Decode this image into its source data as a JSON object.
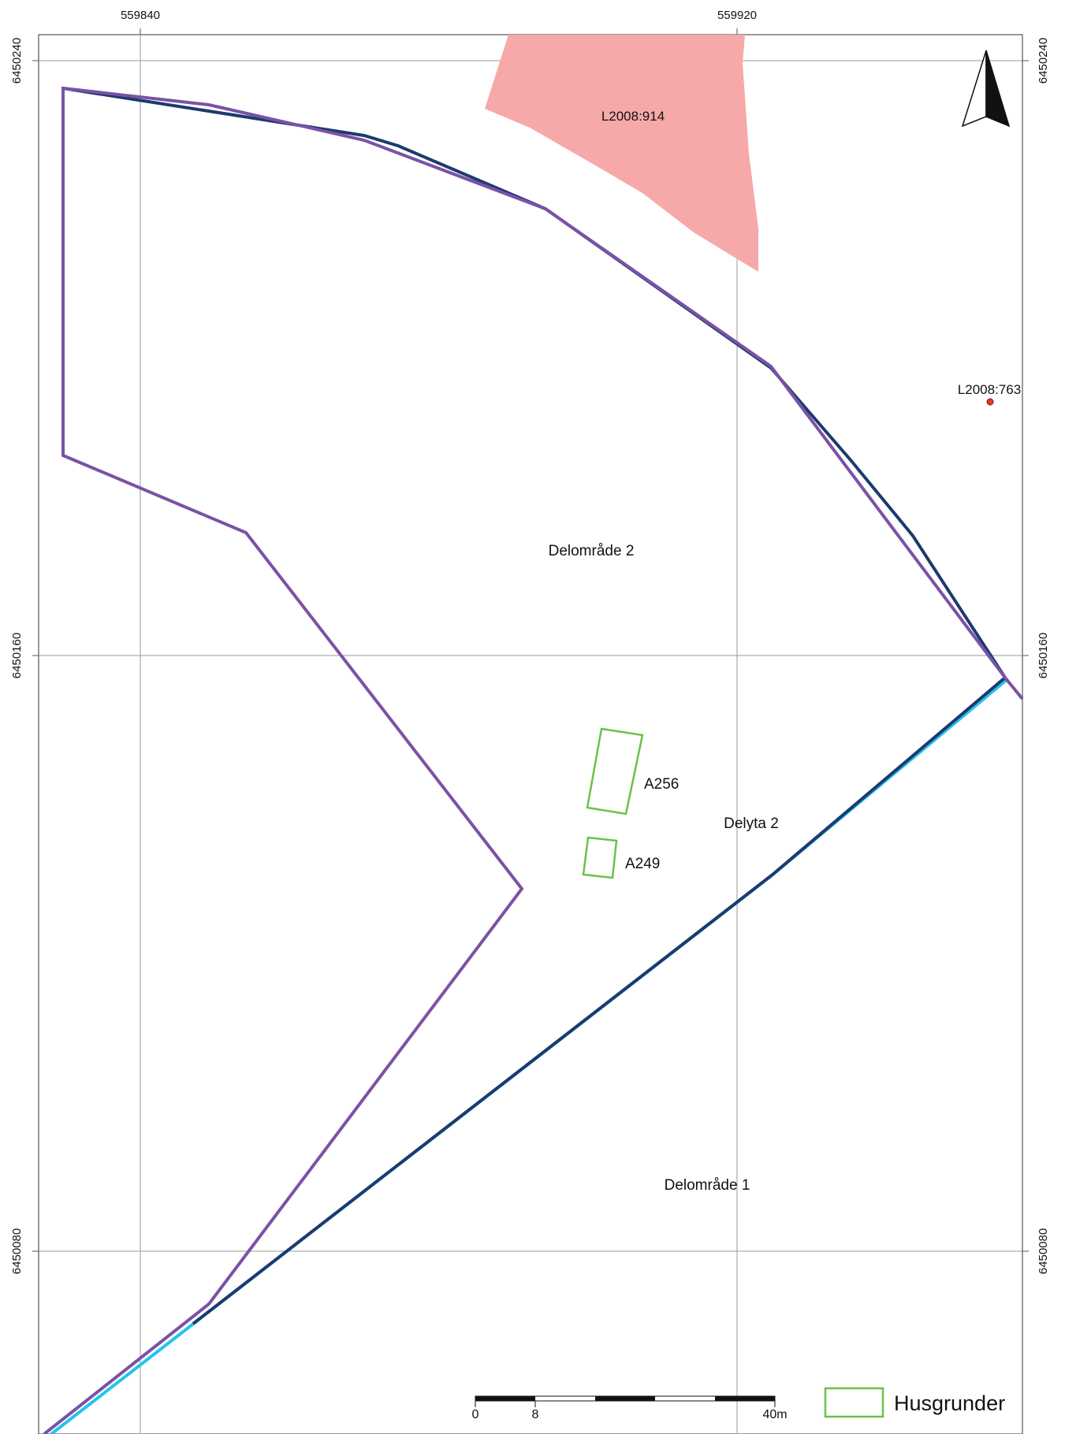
{
  "coordinates": {
    "x_ticks": [
      "559840",
      "559920"
    ],
    "y_ticks": [
      "6450240",
      "6450160",
      "6450080"
    ]
  },
  "sites": {
    "polygon_label": "L2008:914",
    "point_label": "L2008:763",
    "polygon_color": "#f7a8a8",
    "point_color": "#e53a2a"
  },
  "areas": {
    "delomrade_2": "Delområde 2",
    "delomrade_1": "Delområde 1",
    "delyta_2": "Delyta 2"
  },
  "house_foundations": {
    "a256": "A256",
    "a249": "A249",
    "color": "#6ac14a"
  },
  "boundaries": {
    "purple": "#7a52a5",
    "navy": "#1d3a6e",
    "cyan": "#22c4ee"
  },
  "scale_bar": {
    "ticks": [
      "0",
      "8",
      "40m"
    ]
  },
  "legend": {
    "label": "Husgrunder"
  },
  "north_arrow": {
    "icon": "north-arrow-icon"
  }
}
